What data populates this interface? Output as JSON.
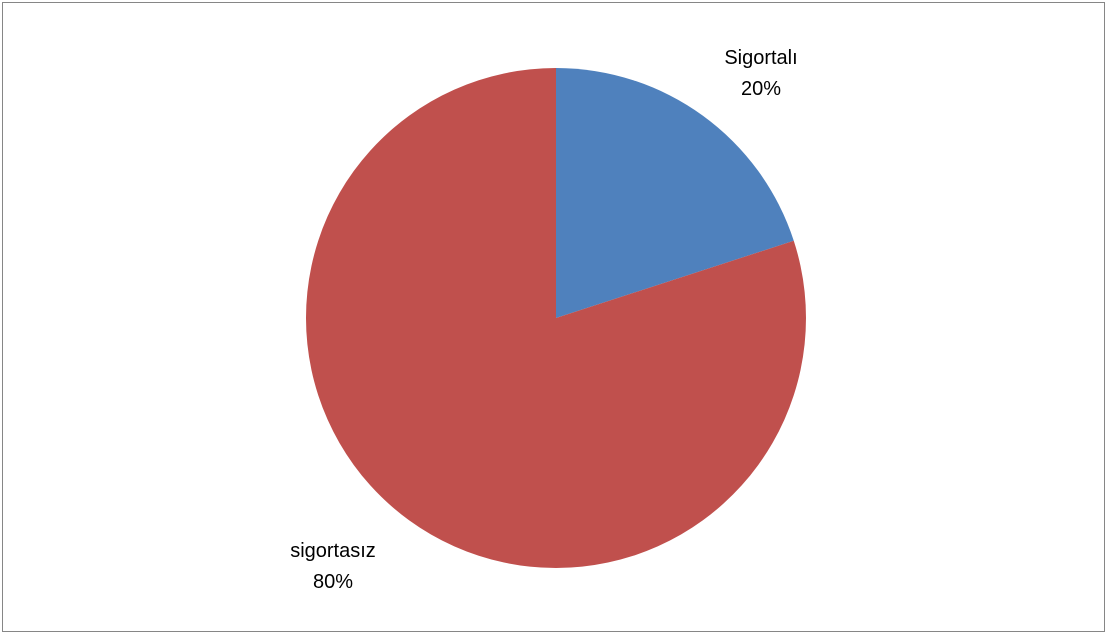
{
  "chart_data": {
    "type": "pie",
    "title": "",
    "slices": [
      {
        "label": "Sigortalı",
        "value": 20,
        "percent_label": "20%",
        "color": "#4F81BD"
      },
      {
        "label": "sigortasız",
        "value": 80,
        "percent_label": "80%",
        "color": "#C0504D"
      }
    ],
    "start_angle_deg": 0,
    "direction": "clockwise",
    "legend": "none",
    "data_labels": "outside"
  }
}
